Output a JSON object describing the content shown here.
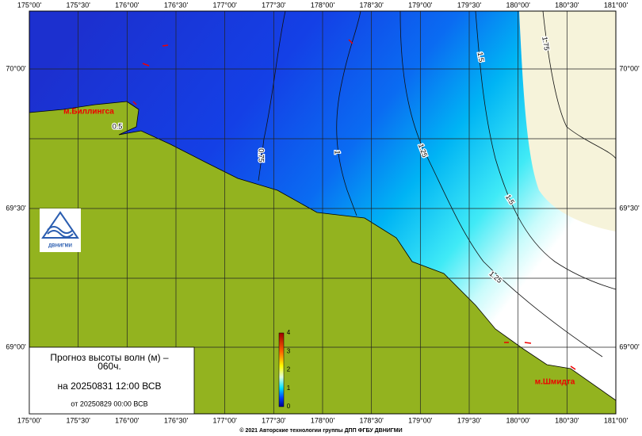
{
  "map": {
    "lon_labels": [
      "175°00'",
      "175°30'",
      "176°00'",
      "176°30'",
      "177°00'",
      "177°30'",
      "178°00'",
      "178°30'",
      "179°00'",
      "179°30'",
      "180°00'",
      "180°30'",
      "181°00'"
    ],
    "lat_labels": [
      "70°00'",
      "69°30'",
      "69°00'"
    ],
    "contour_labels": [
      "1.75",
      "1.5",
      "1.5",
      "1.25",
      "1.25",
      "1",
      "0.75",
      "0.5"
    ],
    "places": [
      "м.Биллингса",
      "м.Шмидта"
    ],
    "logo": "ДВНИГМИ"
  },
  "legend": {
    "title": "Прогноз высоты волн (м) –",
    "lead": "060ч.",
    "valid": "на 20250831 12:00 ВСВ",
    "issued": "от 20250829 00:00 ВСВ"
  },
  "colorbar": {
    "ticks": [
      4,
      3,
      2,
      1,
      0
    ]
  },
  "footer": "© 2021 Авторские технологии группы ДПП ФГБУ ДВНИГМИ"
}
